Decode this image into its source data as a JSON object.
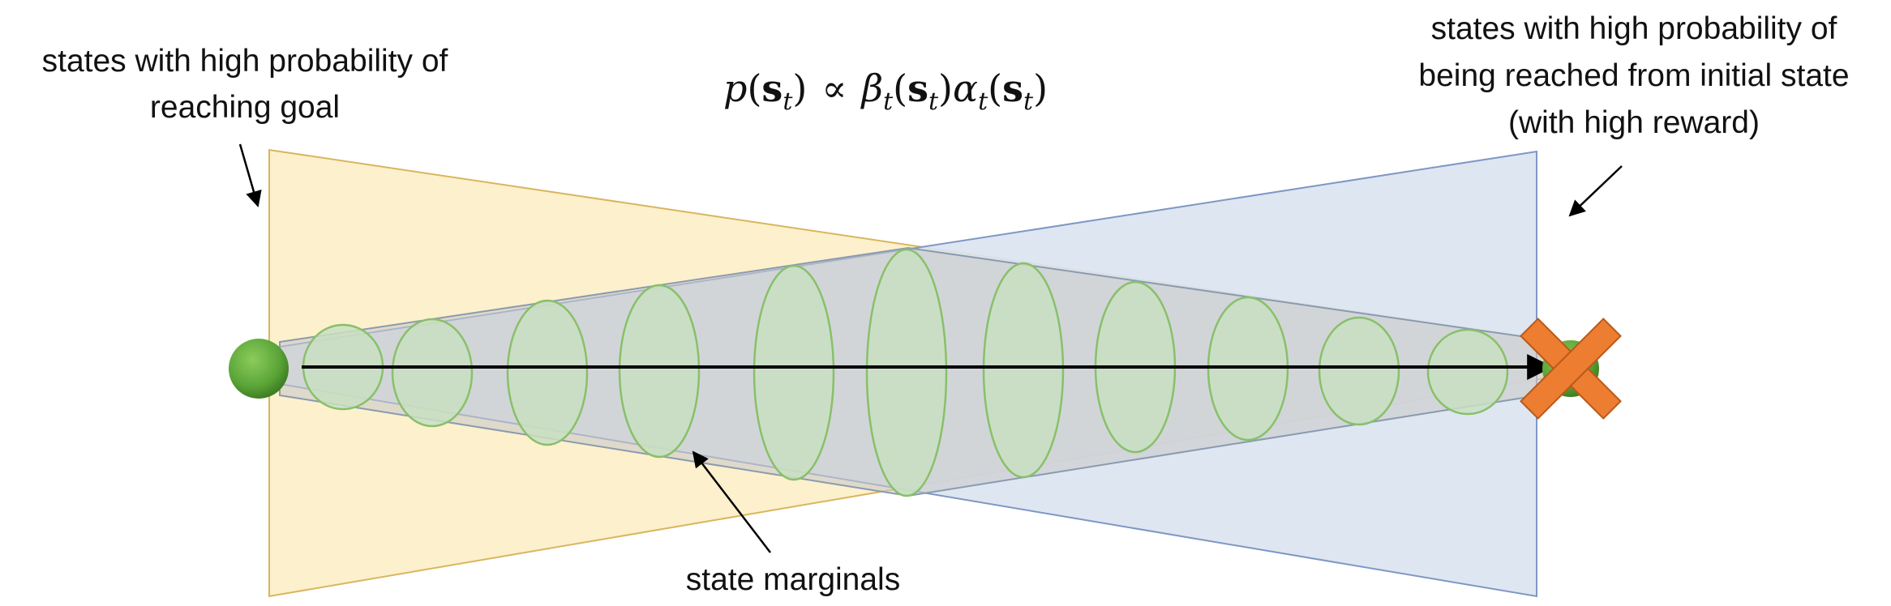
{
  "labels": {
    "left_line1": "states with high probability of",
    "left_line2": "reaching goal",
    "right_line1": "states with high probability of",
    "right_line2": "being reached from initial state",
    "right_line3": "(with high reward)",
    "bottom": "state marginals"
  },
  "formula": {
    "p": "p",
    "s": "s",
    "t": "t",
    "propto": "∝",
    "beta": "β",
    "alpha": "α",
    "lparen": "(",
    "rparen": ")"
  },
  "colors": {
    "backward_region": "#fdefc8",
    "backward_edge": "#d8b65e",
    "forward_region": "#dae3f1",
    "forward_edge": "#7f97c4",
    "band": "#c9c9c9",
    "marginal_fill": "#c9dfc2",
    "marginal_edge": "#88c06a",
    "start_state": "#5aa437",
    "goal_cross": "#ed7d31"
  },
  "icons": {
    "start": "green-circle",
    "goal": "orange-x"
  }
}
